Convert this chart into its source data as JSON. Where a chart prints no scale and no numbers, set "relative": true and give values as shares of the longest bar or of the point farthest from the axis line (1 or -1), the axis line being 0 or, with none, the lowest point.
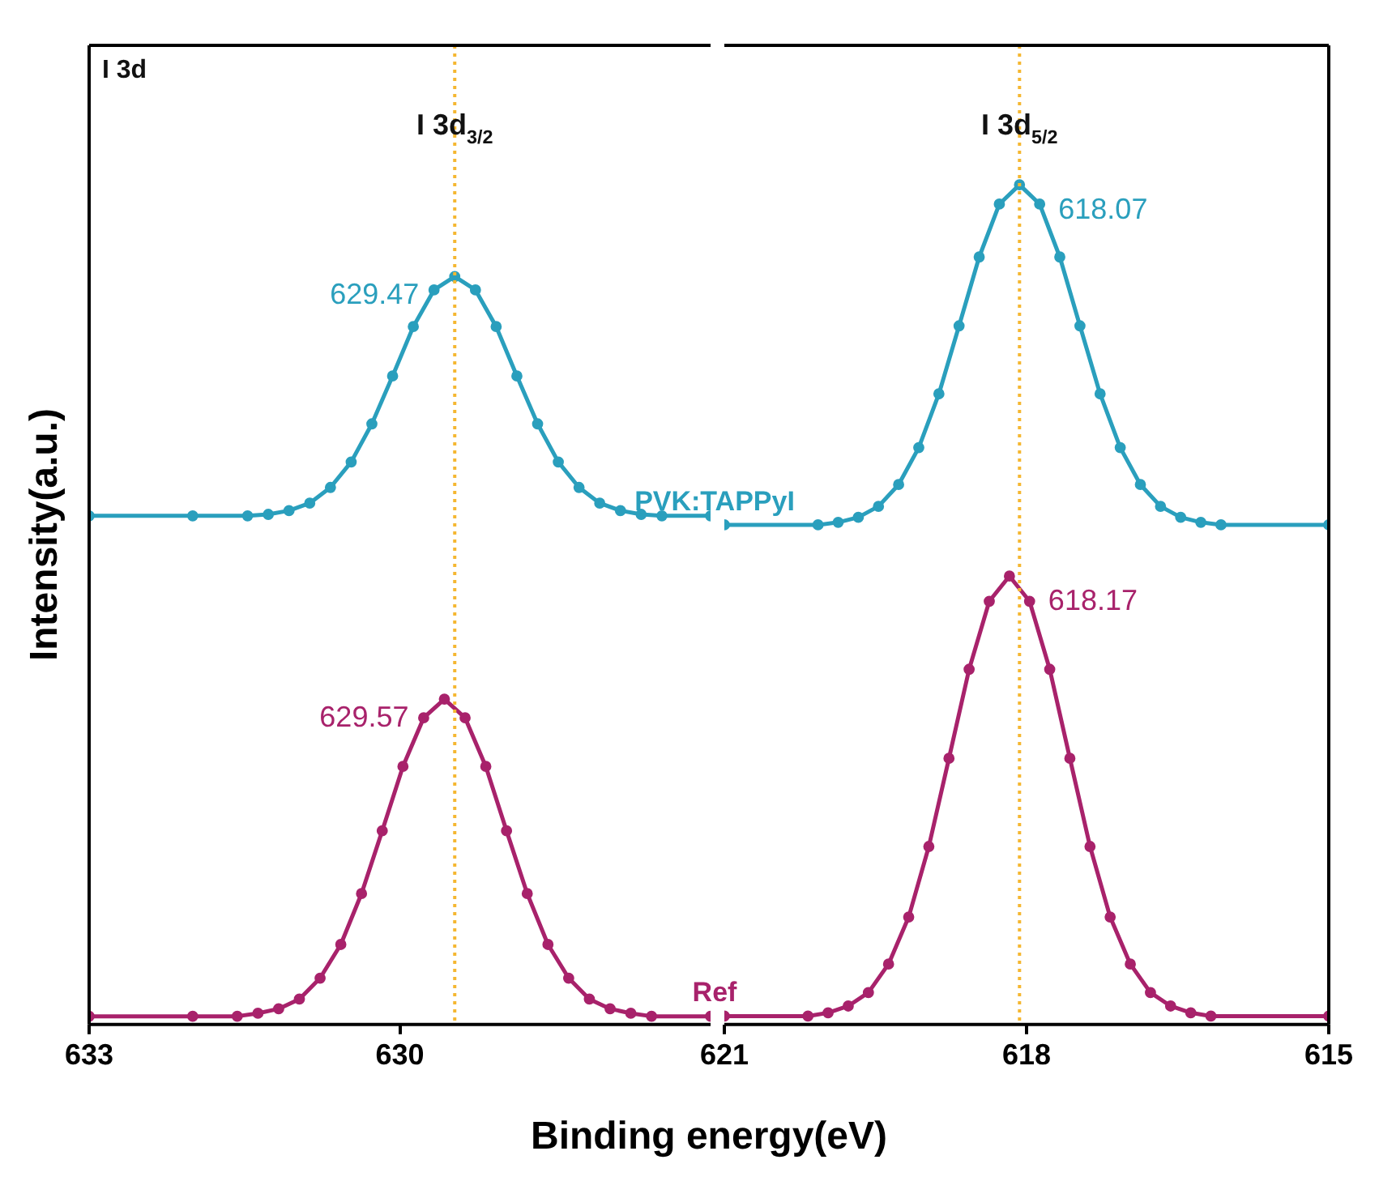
{
  "chart_data": [
    {
      "type": "line",
      "relative": true,
      "xlabel": "Binding energy(eV)",
      "ylabel": "Intensity(a.u.)",
      "xlim": [
        633,
        627
      ],
      "xticks": [
        633,
        630
      ],
      "marker": "circle",
      "line_style": "solid",
      "annotations": [
        "I 3d",
        {
          "text": "I 3d$_{3/2}$",
          "x": 629.47,
          "y": 1.19
        },
        {
          "text": "629.47",
          "x": 629.47,
          "y": 1
        },
        {
          "text": "629.57",
          "x": 629.57,
          "y": 0.435
        }
      ],
      "ref_lines": [
        {
          "axis": "x",
          "value": 629.47,
          "color": "#f5b731",
          "line_style": "dotted"
        }
      ],
      "series": [
        {
          "color": "#2a9fbd",
          "x": [
            633,
            632,
            631.47,
            631.27,
            631.07,
            630.87,
            630.67,
            630.47,
            630.27,
            630.07,
            629.87,
            629.67,
            629.47,
            629.27,
            629.07,
            628.87,
            628.67,
            628.47,
            628.27,
            628.07,
            627.87,
            627.67,
            627.47,
            627
          ],
          "values": [
            0.68,
            0.68,
            0.68,
            0.682,
            0.687,
            0.697,
            0.718,
            0.752,
            0.803,
            0.867,
            0.933,
            0.982,
            1,
            0.982,
            0.933,
            0.867,
            0.803,
            0.752,
            0.718,
            0.697,
            0.687,
            0.682,
            0.68,
            0.68
          ]
        },
        {
          "color": "#a8226b",
          "x": [
            633,
            632,
            631.57,
            631.37,
            631.17,
            630.97,
            630.77,
            630.57,
            630.37,
            630.17,
            629.97,
            629.77,
            629.57,
            629.37,
            629.17,
            628.97,
            628.77,
            628.57,
            628.37,
            628.17,
            627.97,
            627.77,
            627.57,
            627
          ],
          "values": [
            0.011,
            0.011,
            0.011,
            0.015,
            0.021,
            0.034,
            0.062,
            0.107,
            0.175,
            0.259,
            0.345,
            0.41,
            0.435,
            0.41,
            0.345,
            0.259,
            0.175,
            0.107,
            0.062,
            0.034,
            0.021,
            0.015,
            0.011,
            0.011
          ]
        }
      ]
    },
    {
      "type": "line",
      "relative": true,
      "xlim": [
        621,
        615
      ],
      "xticks": [
        621,
        618,
        615
      ],
      "marker": "circle",
      "line_style": "solid",
      "annotations": [
        {
          "text": "I 3d$_{5/2}$",
          "x": 618.07,
          "y": 1.06
        },
        {
          "text": "618.07",
          "x": 618.07,
          "y": 1.0
        },
        {
          "text": "618.17",
          "x": 618.17,
          "y": 0.534
        }
      ],
      "ref_lines": [
        {
          "axis": "x",
          "value": 618.07,
          "color": "#f5b731",
          "line_style": "dotted"
        }
      ],
      "series": [
        {
          "name": "PVK:TAPPyI",
          "color": "#2a9fbd",
          "x": [
            621,
            620.07,
            619.87,
            619.67,
            619.47,
            619.27,
            619.07,
            618.87,
            618.67,
            618.47,
            618.27,
            618.07,
            617.87,
            617.67,
            617.47,
            617.27,
            617.07,
            616.87,
            616.67,
            616.47,
            616.27,
            616.07,
            615
          ],
          "values": [
            0.595,
            0.595,
            0.598,
            0.604,
            0.617,
            0.643,
            0.687,
            0.751,
            0.832,
            0.914,
            0.977,
            1.0,
            0.977,
            0.914,
            0.832,
            0.751,
            0.687,
            0.643,
            0.617,
            0.604,
            0.598,
            0.595,
            0.595
          ]
        },
        {
          "name": "Ref",
          "color": "#a8226b",
          "x": [
            621,
            620.17,
            619.97,
            619.77,
            619.57,
            619.37,
            619.17,
            618.97,
            618.77,
            618.57,
            618.37,
            618.17,
            617.97,
            617.77,
            617.57,
            617.37,
            617.17,
            616.97,
            616.77,
            616.57,
            616.37,
            616.17,
            615
          ],
          "values": [
            0.01,
            0.01,
            0.014,
            0.022,
            0.038,
            0.072,
            0.128,
            0.212,
            0.317,
            0.423,
            0.504,
            0.534,
            0.504,
            0.423,
            0.317,
            0.212,
            0.128,
            0.072,
            0.038,
            0.022,
            0.014,
            0.01,
            0.01
          ]
        }
      ]
    }
  ]
}
